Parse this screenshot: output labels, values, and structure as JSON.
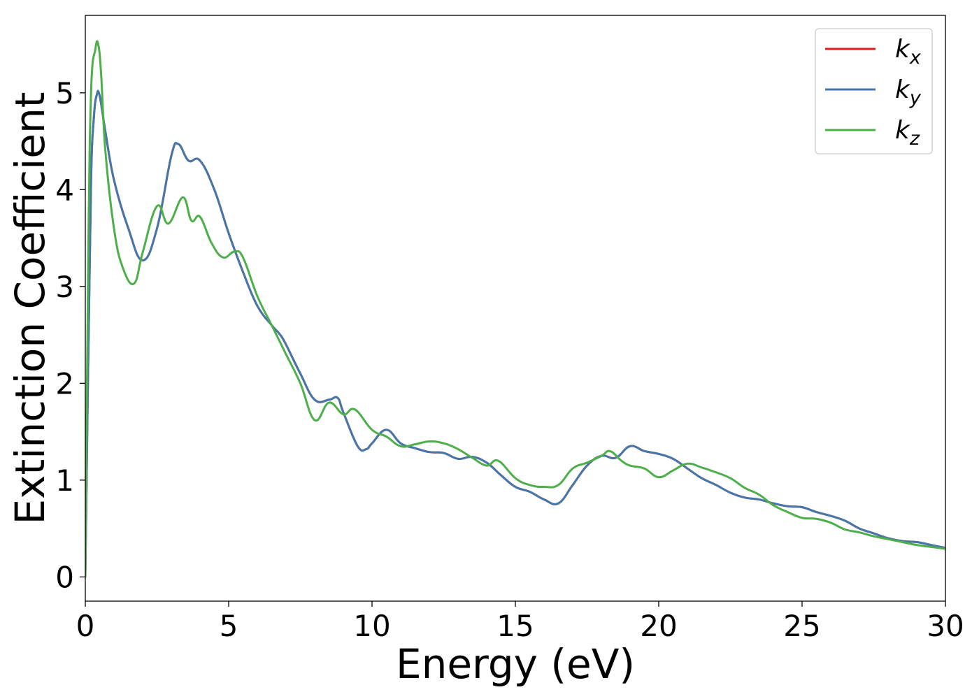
{
  "chart_data": {
    "type": "line",
    "xlabel": "Energy (eV)",
    "ylabel": "Extinction Coefficient",
    "xlim": [
      0,
      30
    ],
    "ylim": [
      -0.25,
      5.8
    ],
    "xticks": [
      0,
      5,
      10,
      15,
      20,
      25,
      30
    ],
    "yticks": [
      0,
      1,
      2,
      3,
      4,
      5
    ],
    "grid": false,
    "legend_position": "top-right",
    "series": [
      {
        "name": "k_x",
        "label_main": "k",
        "label_sub": "x",
        "color": "#e41a1c",
        "x": [
          0.0,
          0.1,
          0.2,
          0.3,
          0.4,
          0.5,
          0.7,
          1.0,
          1.5,
          2.0,
          2.5,
          3.0,
          3.25,
          3.6,
          4.0,
          4.5,
          5.0,
          5.5,
          6.0,
          6.5,
          6.8,
          7.0,
          7.5,
          8.0,
          8.5,
          8.8,
          9.0,
          9.5,
          9.8,
          10.0,
          10.5,
          11.0,
          11.5,
          12.0,
          12.5,
          13.0,
          13.5,
          14.0,
          14.5,
          15.0,
          15.5,
          16.0,
          16.5,
          17.0,
          17.5,
          18.0,
          18.5,
          19.0,
          19.5,
          20.0,
          20.5,
          21.0,
          21.5,
          22.0,
          22.5,
          23.0,
          23.5,
          24.0,
          24.5,
          25.0,
          25.5,
          26.0,
          26.5,
          27.0,
          27.5,
          28.0,
          28.5,
          29.0,
          29.5,
          30.0
        ],
        "y": [
          0.0,
          2.2,
          4.1,
          4.75,
          4.98,
          4.97,
          4.6,
          4.1,
          3.6,
          3.27,
          3.6,
          4.35,
          4.47,
          4.3,
          4.3,
          4.0,
          3.55,
          3.15,
          2.8,
          2.6,
          2.5,
          2.4,
          2.1,
          1.83,
          1.83,
          1.85,
          1.7,
          1.35,
          1.32,
          1.38,
          1.52,
          1.38,
          1.33,
          1.29,
          1.28,
          1.22,
          1.24,
          1.18,
          1.05,
          0.93,
          0.88,
          0.8,
          0.76,
          0.95,
          1.15,
          1.25,
          1.23,
          1.35,
          1.3,
          1.27,
          1.22,
          1.12,
          1.02,
          0.95,
          0.87,
          0.82,
          0.8,
          0.76,
          0.73,
          0.72,
          0.67,
          0.63,
          0.58,
          0.5,
          0.45,
          0.4,
          0.37,
          0.36,
          0.33,
          0.3
        ]
      },
      {
        "name": "k_y",
        "label_main": "k",
        "label_sub": "y",
        "color": "#4477aa",
        "x": [
          0.0,
          0.1,
          0.2,
          0.3,
          0.4,
          0.5,
          0.7,
          1.0,
          1.5,
          2.0,
          2.5,
          3.0,
          3.25,
          3.6,
          4.0,
          4.5,
          5.0,
          5.5,
          6.0,
          6.5,
          6.8,
          7.0,
          7.5,
          8.0,
          8.5,
          8.8,
          9.0,
          9.5,
          9.8,
          10.0,
          10.5,
          11.0,
          11.5,
          12.0,
          12.5,
          13.0,
          13.5,
          14.0,
          14.5,
          15.0,
          15.5,
          16.0,
          16.5,
          17.0,
          17.5,
          18.0,
          18.5,
          19.0,
          19.5,
          20.0,
          20.5,
          21.0,
          21.5,
          22.0,
          22.5,
          23.0,
          23.5,
          24.0,
          24.5,
          25.0,
          25.5,
          26.0,
          26.5,
          27.0,
          27.5,
          28.0,
          28.5,
          29.0,
          29.5,
          30.0
        ],
        "y": [
          0.0,
          2.2,
          4.1,
          4.75,
          4.98,
          4.97,
          4.6,
          4.1,
          3.6,
          3.27,
          3.6,
          4.35,
          4.47,
          4.3,
          4.3,
          4.0,
          3.55,
          3.15,
          2.8,
          2.6,
          2.5,
          2.4,
          2.1,
          1.83,
          1.83,
          1.85,
          1.7,
          1.35,
          1.32,
          1.38,
          1.52,
          1.38,
          1.33,
          1.29,
          1.28,
          1.22,
          1.24,
          1.18,
          1.05,
          0.93,
          0.88,
          0.8,
          0.76,
          0.95,
          1.15,
          1.25,
          1.23,
          1.35,
          1.3,
          1.27,
          1.22,
          1.12,
          1.02,
          0.95,
          0.87,
          0.82,
          0.8,
          0.76,
          0.73,
          0.72,
          0.67,
          0.63,
          0.58,
          0.5,
          0.45,
          0.4,
          0.37,
          0.36,
          0.33,
          0.3
        ]
      },
      {
        "name": "k_z",
        "label_main": "k",
        "label_sub": "z",
        "color": "#4daf4a",
        "x": [
          0.0,
          0.1,
          0.2,
          0.35,
          0.45,
          0.55,
          0.7,
          1.0,
          1.3,
          1.7,
          2.0,
          2.5,
          2.9,
          3.4,
          3.7,
          4.0,
          4.4,
          4.8,
          5.2,
          5.5,
          6.0,
          6.5,
          7.0,
          7.5,
          8.0,
          8.5,
          9.0,
          9.4,
          10.0,
          10.5,
          11.0,
          11.5,
          12.0,
          12.5,
          13.0,
          13.5,
          14.0,
          14.4,
          15.0,
          15.5,
          16.0,
          16.5,
          17.0,
          17.5,
          18.0,
          18.3,
          18.7,
          19.0,
          19.5,
          20.0,
          20.5,
          21.0,
          21.5,
          22.0,
          22.5,
          23.0,
          23.5,
          24.0,
          24.5,
          25.0,
          25.5,
          26.0,
          26.5,
          27.0,
          27.5,
          28.0,
          28.5,
          29.0,
          29.5,
          30.0
        ],
        "y": [
          0.0,
          3.2,
          5.0,
          5.45,
          5.5,
          5.2,
          4.4,
          3.6,
          3.2,
          3.03,
          3.35,
          3.83,
          3.65,
          3.92,
          3.68,
          3.72,
          3.45,
          3.3,
          3.36,
          3.3,
          2.9,
          2.6,
          2.3,
          2.0,
          1.62,
          1.8,
          1.68,
          1.73,
          1.52,
          1.45,
          1.35,
          1.37,
          1.4,
          1.38,
          1.32,
          1.23,
          1.15,
          1.2,
          1.02,
          0.95,
          0.93,
          0.95,
          1.12,
          1.18,
          1.25,
          1.3,
          1.2,
          1.15,
          1.12,
          1.03,
          1.1,
          1.17,
          1.13,
          1.08,
          1.02,
          0.92,
          0.85,
          0.74,
          0.67,
          0.61,
          0.6,
          0.56,
          0.49,
          0.46,
          0.42,
          0.39,
          0.36,
          0.33,
          0.31,
          0.29
        ]
      }
    ]
  }
}
